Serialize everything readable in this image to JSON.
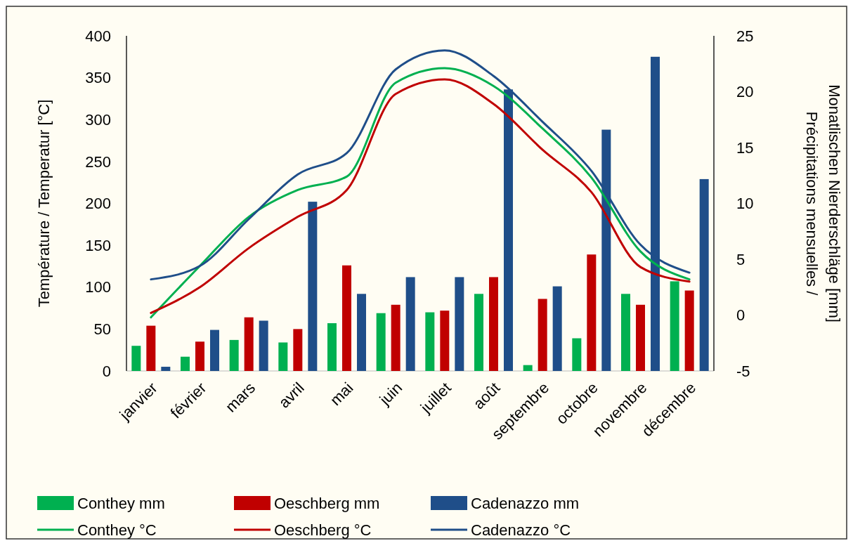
{
  "chart_data": {
    "type": "bar",
    "categories": [
      "janvier",
      "février",
      "mars",
      "avril",
      "mai",
      "juin",
      "juillet",
      "août",
      "septembre",
      "octobre",
      "novembre",
      "décembre"
    ],
    "ylabel": "Température / Temperatur [°C]",
    "y2label": "Précipitations mensuelles / Monatlischen Nierderschläge [mm]",
    "ylim": [
      0,
      400
    ],
    "yticks": [
      0,
      50,
      100,
      150,
      200,
      250,
      300,
      350,
      400
    ],
    "y2lim": [
      -5,
      25
    ],
    "y2ticks": [
      -5,
      0,
      5,
      10,
      15,
      20,
      25
    ],
    "grid": false,
    "legend": "bottom",
    "series": [
      {
        "name": "Conthey mm",
        "color": "#00b050",
        "values": [
          30,
          17,
          37,
          34,
          57,
          69,
          70,
          92,
          7,
          39,
          92,
          107
        ]
      },
      {
        "name": "Oeschberg mm",
        "color": "#c00000",
        "values": [
          54,
          35,
          64,
          50,
          126,
          79,
          72,
          112,
          86,
          139,
          79,
          96
        ]
      },
      {
        "name": "Cadenazzo mm",
        "color": "#1f4e89",
        "values": [
          5,
          49,
          60,
          202,
          92,
          112,
          112,
          336,
          101,
          288,
          375,
          229
        ]
      },
      {
        "name": "Conthey °C",
        "type": "line",
        "axis": "y2",
        "color": "#00b050",
        "values": [
          -0.2,
          4.4,
          8.8,
          11.2,
          12.4,
          20.8,
          22.1,
          20.5,
          16.7,
          12.3,
          5.7,
          3.2
        ]
      },
      {
        "name": "Oeschberg °C",
        "type": "line",
        "axis": "y2",
        "color": "#c00000",
        "values": [
          0.2,
          2.5,
          6.0,
          8.8,
          11.2,
          19.8,
          21.1,
          18.9,
          14.8,
          11.0,
          4.3,
          3.0
        ]
      },
      {
        "name": "Cadenazzo °C",
        "type": "line",
        "axis": "y2",
        "color": "#1f4e89",
        "values": [
          3.2,
          4.4,
          8.6,
          12.6,
          14.5,
          22.0,
          23.7,
          21.4,
          17.3,
          12.9,
          6.3,
          3.8
        ]
      }
    ]
  }
}
